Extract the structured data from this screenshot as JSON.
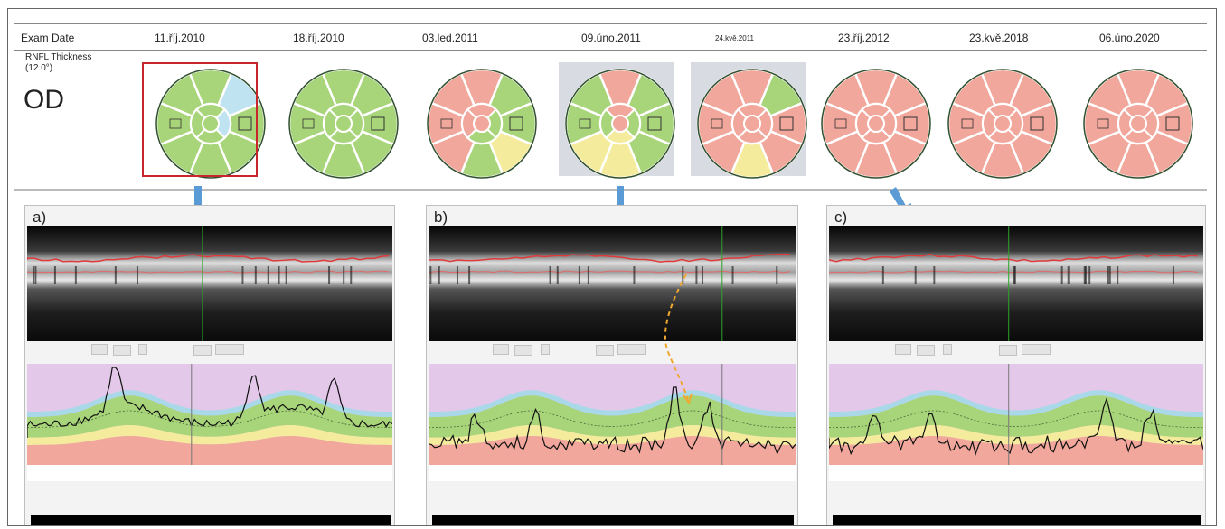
{
  "header": {
    "exam_date_label": "Exam Date",
    "dates": [
      "11.říj.2010",
      "18.říj.2010",
      "03.led.2011",
      "09.úno.2011",
      "24.kvě.2011",
      "23.říj.2012",
      "23.kvě.2018",
      "06.úno.2020"
    ],
    "rnfl_label_1": "RNFL Thickness",
    "rnfl_label_2": "(12.0°)",
    "eye": "OD"
  },
  "discs": [
    {
      "outer": [
        "#a8d47a",
        "#bfe3f0",
        "#a8d47a",
        "#a8d47a",
        "#a8d47a",
        "#a8d47a",
        "#a8d47a",
        "#a8d47a"
      ],
      "inner": [
        "#a8d47a",
        "#bfe3f0",
        "#a8d47a",
        "#a8d47a"
      ],
      "center": "#a8d47a"
    },
    {
      "outer": [
        "#a8d47a",
        "#a8d47a",
        "#a8d47a",
        "#a8d47a",
        "#a8d47a",
        "#a8d47a",
        "#a8d47a",
        "#a8d47a"
      ],
      "inner": [
        "#a8d47a",
        "#a8d47a",
        "#a8d47a",
        "#a8d47a"
      ],
      "center": "#a8d47a"
    },
    {
      "outer": [
        "#f1a79b",
        "#a8d47a",
        "#a8d47a",
        "#f4ec9c",
        "#a8d47a",
        "#f1a79b",
        "#f1a79b",
        "#f1a79b"
      ],
      "inner": [
        "#f1a79b",
        "#a8d47a",
        "#a8d47a",
        "#f1a79b"
      ],
      "center": "#f1a79b"
    },
    {
      "outer": [
        "#f1a79b",
        "#a8d47a",
        "#a8d47a",
        "#a8d47a",
        "#f4ec9c",
        "#f4ec9c",
        "#a8d47a",
        "#a8d47a"
      ],
      "inner": [
        "#f1a79b",
        "#a8d47a",
        "#f4ec9c",
        "#a8d47a"
      ],
      "center": "#f1a79b"
    },
    {
      "outer": [
        "#f1a79b",
        "#a8d47a",
        "#f1a79b",
        "#f1a79b",
        "#f4ec9c",
        "#f1a79b",
        "#f1a79b",
        "#f1a79b"
      ],
      "inner": [
        "#f1a79b",
        "#f1a79b",
        "#f1a79b",
        "#f1a79b"
      ],
      "center": "#f1a79b"
    },
    {
      "outer": [
        "#f1a79b",
        "#f1a79b",
        "#f1a79b",
        "#f1a79b",
        "#f1a79b",
        "#f1a79b",
        "#f1a79b",
        "#f1a79b"
      ],
      "inner": [
        "#f1a79b",
        "#f1a79b",
        "#f1a79b",
        "#f1a79b"
      ],
      "center": "#f1a79b"
    },
    {
      "outer": [
        "#f1a79b",
        "#f1a79b",
        "#f1a79b",
        "#f1a79b",
        "#f1a79b",
        "#f1a79b",
        "#f1a79b",
        "#f1a79b"
      ],
      "inner": [
        "#f1a79b",
        "#f1a79b",
        "#f1a79b",
        "#f1a79b"
      ],
      "center": "#f1a79b"
    },
    {
      "outer": [
        "#f1a79b",
        "#f1a79b",
        "#f1a79b",
        "#f1a79b",
        "#f1a79b",
        "#f1a79b",
        "#f1a79b",
        "#f1a79b"
      ],
      "inner": [
        "#f1a79b",
        "#f1a79b",
        "#f1a79b",
        "#f1a79b"
      ],
      "center": "#f1a79b"
    }
  ],
  "panels": [
    {
      "label": "a)"
    },
    {
      "label": "b)"
    },
    {
      "label": "c)"
    }
  ],
  "colors": {
    "highlight_box": "#c9262c",
    "arrow": "#5b9bd5",
    "trace_arrow": "#f0a830",
    "tsnit_bg": "#e3c8ea",
    "tsnit_green": "#a8d47a",
    "tsnit_yellow": "#f4ec9c",
    "tsnit_red": "#f1a79b"
  }
}
